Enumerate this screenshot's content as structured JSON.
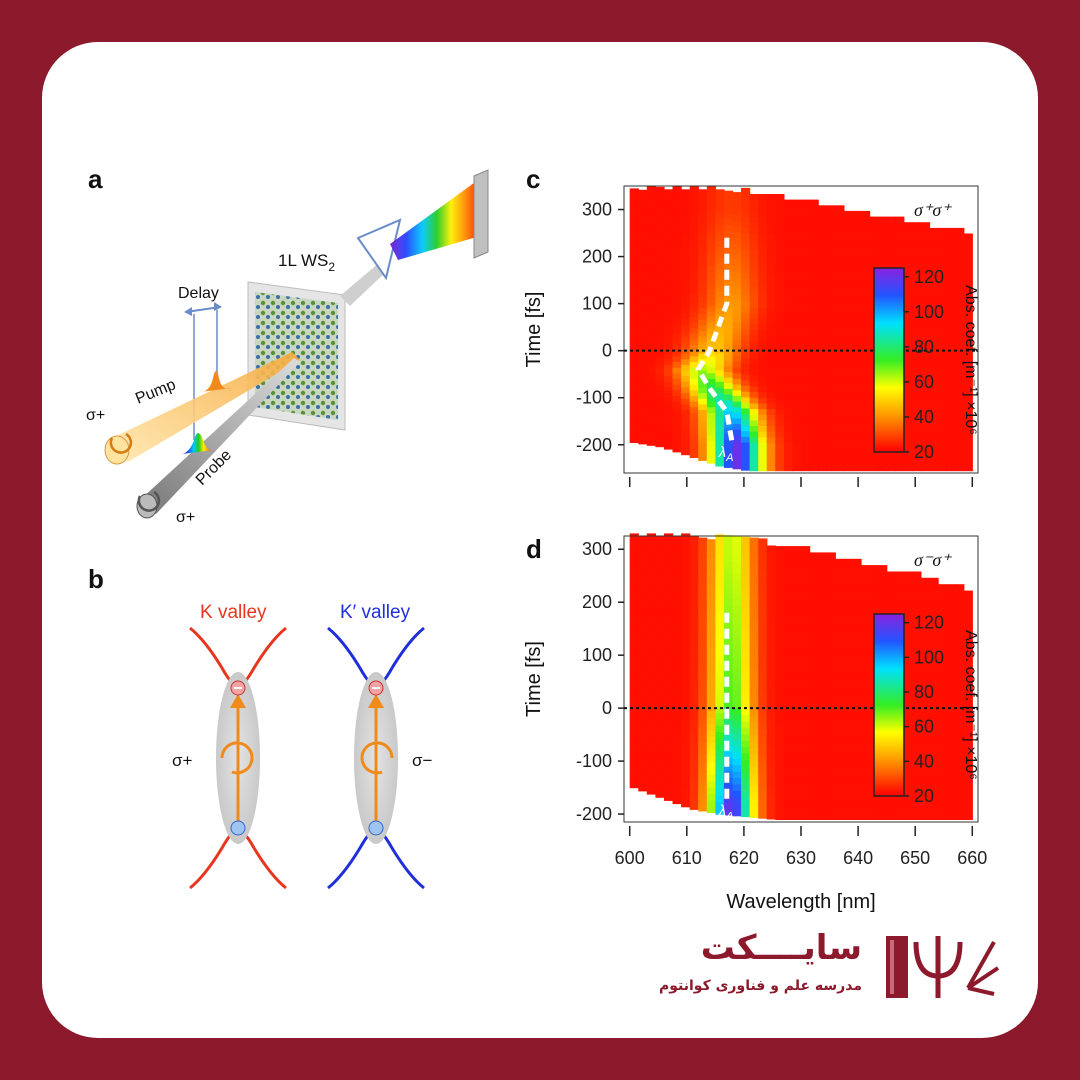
{
  "panels": {
    "a": {
      "letter": "a",
      "sample_label": "1L WS",
      "sample_sub": "2",
      "delay_label": "Delay",
      "pump_label": "Pump",
      "probe_label": "Probe",
      "pump_pol": "σ+",
      "probe_pol": "σ+"
    },
    "b": {
      "letter": "b",
      "k_valley": "K valley",
      "kp_valley": "K′ valley",
      "pol_left": "σ+",
      "pol_right": "σ−",
      "k_color": "#e8361e",
      "kp_color": "#1f2fd9"
    },
    "c": {
      "letter": "c",
      "pol_label": "σ⁺σ⁺",
      "lambda_label": "λ",
      "lambda_sub": "A"
    },
    "d": {
      "letter": "d",
      "pol_label": "σ⁻σ⁺",
      "lambda_label": "λ",
      "lambda_sub": "A"
    }
  },
  "chart_data": [
    {
      "type": "heatmap",
      "panel": "c",
      "xlabel": "",
      "ylabel": "Time [fs]",
      "xlim": [
        599,
        661
      ],
      "ylim": [
        -260,
        350
      ],
      "yticks": [
        300,
        200,
        100,
        0,
        -100,
        -200
      ],
      "colorbar": {
        "label": "Abs. coef. [m⁻¹] ×10⁶",
        "ticks": [
          120,
          100,
          80,
          60,
          40,
          20
        ],
        "range": [
          20,
          125
        ]
      },
      "peak_trace": {
        "wavelength": [
          617,
          617,
          614,
          612,
          614,
          617,
          618
        ],
        "time": [
          240,
          100,
          0,
          -40,
          -80,
          -130,
          -200
        ]
      },
      "top_edge": {
        "wavelength": [
          600,
          610,
          620,
          630,
          640,
          650,
          660
        ],
        "time": [
          340,
          340,
          335,
          315,
          290,
          265,
          245
        ]
      },
      "bottom_edge": {
        "wavelength": [
          600,
          605,
          610,
          615,
          620,
          625,
          660
        ],
        "time": [
          -195,
          -205,
          -225,
          -245,
          -255,
          -255,
          -255
        ]
      }
    },
    {
      "type": "heatmap",
      "panel": "d",
      "xlabel": "Wavelength [nm]",
      "ylabel": "Time [fs]",
      "xlim": [
        599,
        661
      ],
      "ylim": [
        -215,
        325
      ],
      "xticks": [
        600,
        610,
        620,
        630,
        640,
        650,
        660
      ],
      "yticks": [
        300,
        200,
        100,
        0,
        -100,
        -200
      ],
      "colorbar": {
        "label": "Abs. coef. [m⁻¹] ×10⁶",
        "ticks": [
          120,
          100,
          80,
          60,
          40,
          20
        ],
        "range": [
          20,
          125
        ]
      },
      "peak_trace": {
        "wavelength": [
          617,
          617,
          617
        ],
        "time": [
          180,
          0,
          -180
        ]
      },
      "top_edge": {
        "wavelength": [
          600,
          610,
          620,
          630,
          640,
          650,
          660
        ],
        "time": [
          320,
          320,
          315,
          295,
          270,
          245,
          215
        ]
      },
      "bottom_edge": {
        "wavelength": [
          600,
          605,
          610,
          615,
          620,
          625,
          660
        ],
        "time": [
          -150,
          -170,
          -190,
          -200,
          -205,
          -210,
          -210
        ]
      }
    }
  ],
  "brand": {
    "title": "سایــــکت",
    "subtitle": "مدرسه علم و فناوری کوانتوم",
    "logo_icon": "psi-book-icon",
    "color": "#8c1a2c"
  }
}
